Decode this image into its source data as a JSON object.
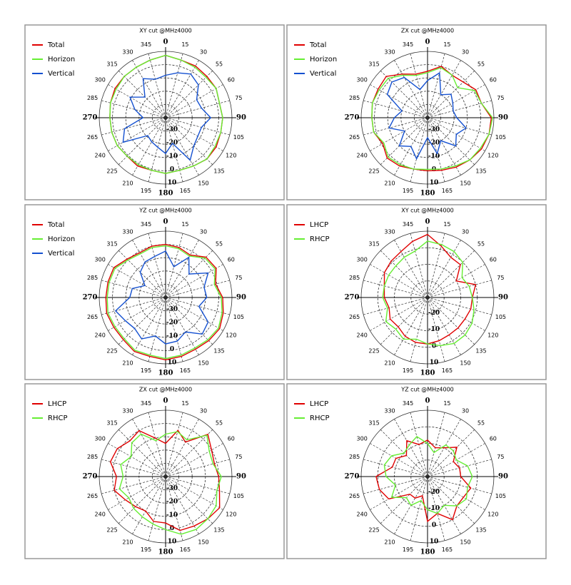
{
  "chart_data": [
    {
      "type": "polar",
      "title": "XY cut @MHz4000",
      "categories": [
        "0",
        "15",
        "30",
        "55",
        "60",
        "75",
        "90",
        "105",
        "120",
        "135",
        "150",
        "165",
        "180",
        "195",
        "210",
        "225",
        "240",
        "265",
        "270",
        "285",
        "300",
        "315",
        "330",
        "345"
      ],
      "ylim": [
        -40,
        10
      ],
      "yticks": [
        -30,
        -20,
        -10,
        0,
        10
      ],
      "series": [
        {
          "name": "Total",
          "color": "#e00000",
          "values": [
            7,
            5,
            5,
            4,
            4,
            2,
            3,
            3,
            4,
            4,
            2,
            1,
            2,
            1,
            2,
            1,
            2,
            2,
            2,
            3,
            4,
            4,
            4,
            5
          ]
        },
        {
          "name": "Horizon",
          "color": "#66ee33",
          "values": [
            7,
            5,
            4,
            3,
            4,
            2,
            3,
            3,
            3,
            4,
            2,
            1,
            2,
            1,
            1,
            1,
            2,
            2,
            2,
            3,
            3,
            4,
            4,
            5
          ]
        },
        {
          "name": "Vertical",
          "color": "#1450d0",
          "values": [
            -8,
            -5,
            -2,
            -5,
            -13,
            -12,
            -6,
            -12,
            -12,
            -10,
            -3,
            -20,
            -13,
            -17,
            -19,
            -21,
            -3,
            -8,
            -23,
            -16,
            -9,
            -18,
            -6,
            -10
          ]
        }
      ]
    },
    {
      "type": "polar",
      "title": "ZX cut @MHz4000",
      "categories": [
        "0",
        "15",
        "30",
        "55",
        "60",
        "75",
        "90",
        "105",
        "120",
        "135",
        "150",
        "165",
        "180",
        "195",
        "210",
        "225",
        "240",
        "265",
        "270",
        "285",
        "300",
        "315",
        "330",
        "345"
      ],
      "ylim": [
        -40,
        10
      ],
      "yticks": [
        -30,
        -20,
        -10,
        0,
        10
      ],
      "series": [
        {
          "name": "Total",
          "color": "#e00000",
          "values": [
            -5,
            0,
            -3,
            -2,
            2,
            2,
            8,
            8,
            7,
            5,
            3,
            1,
            0,
            0,
            2,
            3,
            -1,
            2,
            2,
            3,
            3,
            4,
            -2,
            -6
          ]
        },
        {
          "name": "Horizon",
          "color": "#66ee33",
          "values": [
            -6,
            -1,
            -3,
            -8,
            1,
            2,
            9,
            8,
            6,
            5,
            2,
            0,
            -1,
            0,
            1,
            2,
            -2,
            2,
            2,
            3,
            2,
            2,
            -3,
            -7
          ]
        },
        {
          "name": "Vertical",
          "color": "#1450d0",
          "values": [
            -12,
            -5,
            -20,
            -15,
            -18,
            -20,
            -18,
            -10,
            -15,
            -10,
            -20,
            -12,
            -25,
            -8,
            -15,
            -10,
            -20,
            -10,
            -15,
            -20,
            -5,
            -2,
            -5,
            -18
          ]
        }
      ]
    },
    {
      "type": "polar",
      "title": "YZ cut @MHz4000",
      "categories": [
        "0",
        "15",
        "30",
        "55",
        "60",
        "75",
        "90",
        "105",
        "120",
        "135",
        "150",
        "165",
        "180",
        "195",
        "210",
        "225",
        "240",
        "265",
        "270",
        "285",
        "300",
        "315",
        "330",
        "345"
      ],
      "ylim": [
        -40,
        10
      ],
      "yticks": [
        -30,
        -20,
        -10,
        0,
        10
      ],
      "series": [
        {
          "name": "Total",
          "color": "#e00000",
          "values": [
            0,
            -1,
            -3,
            3,
            4,
            -1,
            3,
            5,
            7,
            6,
            5,
            6,
            7,
            6,
            7,
            5,
            5,
            6,
            5,
            5,
            5,
            1,
            -1,
            0
          ]
        },
        {
          "name": "Horizon",
          "color": "#66ee33",
          "values": [
            -1,
            -2,
            -4,
            2,
            3,
            -2,
            2,
            4,
            6,
            5,
            4,
            5,
            6,
            5,
            6,
            4,
            4,
            5,
            4,
            4,
            4,
            0,
            -2,
            -1
          ]
        },
        {
          "name": "Vertical",
          "color": "#1450d0",
          "values": [
            -5,
            -16,
            -5,
            -15,
            -3,
            -10,
            -9,
            -14,
            -3,
            -1,
            -10,
            -6,
            -5,
            -10,
            -4,
            -7,
            -5,
            -1,
            -13,
            -14,
            -22,
            -13,
            -9,
            -8
          ]
        }
      ]
    },
    {
      "type": "polar",
      "title": "XY cut @MHz4000",
      "categories": [
        "0",
        "15",
        "30",
        "55",
        "60",
        "75",
        "90",
        "105",
        "120",
        "135",
        "150",
        "165",
        "180",
        "195",
        "210",
        "225",
        "240",
        "265",
        "270",
        "285",
        "300",
        "315",
        "330",
        "345"
      ],
      "ylim": [
        -30,
        10
      ],
      "yticks": [
        -20,
        -10,
        0,
        10
      ],
      "series": [
        {
          "name": "LHCP",
          "color": "#e00000",
          "values": [
            8,
            2,
            -2,
            -2,
            -10,
            0,
            -3,
            -3,
            -4,
            -4,
            -4,
            -3,
            -2,
            -2,
            -3,
            -5,
            -4,
            -6,
            -4,
            -3,
            0,
            1,
            2,
            5
          ]
        },
        {
          "name": "RHCP",
          "color": "#66ee33",
          "values": [
            4,
            3,
            2,
            0,
            -6,
            -4,
            -3,
            -1,
            1,
            2,
            2,
            0,
            -2,
            -4,
            -1,
            -3,
            -1,
            -5,
            -3,
            -3,
            -3,
            -3,
            -2,
            -1
          ]
        }
      ]
    },
    {
      "type": "polar",
      "title": "ZX cut @MHz4000",
      "categories": [
        "0",
        "15",
        "30",
        "55",
        "60",
        "75",
        "90",
        "105",
        "120",
        "135",
        "150",
        "165",
        "180",
        "195",
        "210",
        "225",
        "240",
        "265",
        "270",
        "285",
        "300",
        "315",
        "330",
        "345"
      ],
      "ylim": [
        -40,
        10
      ],
      "yticks": [
        -30,
        -20,
        -10,
        0,
        10
      ],
      "series": [
        {
          "name": "LHCP",
          "color": "#e00000",
          "values": [
            -15,
            -4,
            -10,
            5,
            0,
            -2,
            0,
            2,
            7,
            5,
            3,
            2,
            -5,
            -5,
            -10,
            -8,
            -5,
            0,
            -3,
            3,
            2,
            -2,
            0,
            -10
          ]
        },
        {
          "name": "RHCP",
          "color": "#66ee33",
          "values": [
            -8,
            -5,
            -8,
            4,
            -2,
            -3,
            2,
            0,
            4,
            5,
            6,
            5,
            0,
            -3,
            -5,
            -6,
            -8,
            -4,
            -8,
            -5,
            -10,
            -4,
            -3,
            -12
          ]
        }
      ]
    },
    {
      "type": "polar",
      "title": "YZ cut @MHz4000",
      "categories": [
        "0",
        "15",
        "30",
        "55",
        "60",
        "75",
        "90",
        "105",
        "120",
        "135",
        "150",
        "165",
        "180",
        "195",
        "210",
        "225",
        "240",
        "265",
        "270",
        "285",
        "300",
        "315",
        "330",
        "345"
      ],
      "ylim": [
        -30,
        10
      ],
      "yticks": [
        -20,
        -10,
        0,
        10
      ],
      "series": [
        {
          "name": "LHCP",
          "color": "#e00000",
          "values": [
            -8,
            -12,
            -10,
            -5,
            -12,
            -10,
            -10,
            -3,
            -5,
            -5,
            0,
            -7,
            -3,
            -18,
            -15,
            -15,
            -3,
            0,
            1,
            -8,
            -8,
            -12,
            -5,
            -10
          ]
        },
        {
          "name": "RHCP",
          "color": "#66ee33",
          "values": [
            -10,
            -15,
            -8,
            -8,
            -10,
            -5,
            -3,
            -5,
            -3,
            -5,
            -10,
            -7,
            -10,
            -15,
            -10,
            -12,
            -5,
            -10,
            -5,
            -3,
            -5,
            -10,
            -8,
            -5
          ]
        }
      ]
    }
  ]
}
